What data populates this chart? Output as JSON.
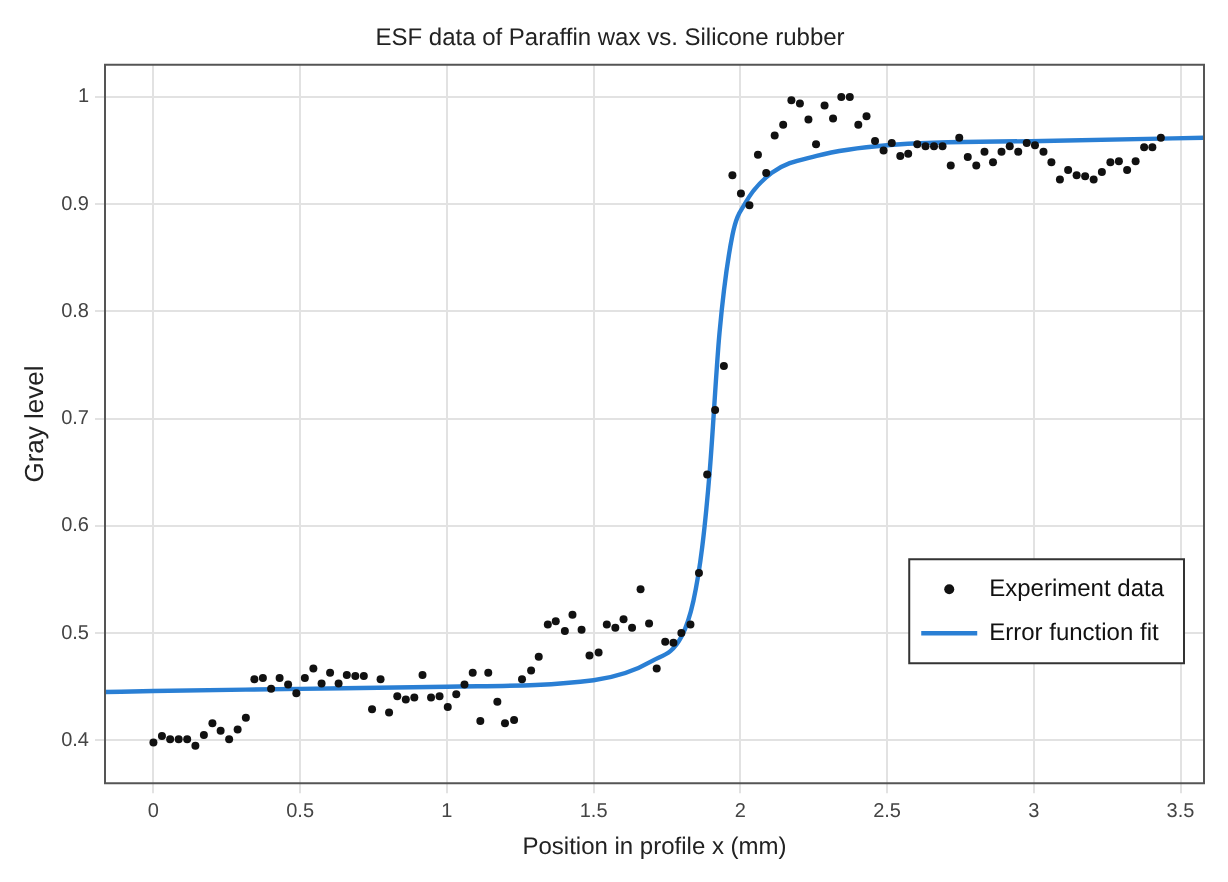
{
  "chart_data": {
    "type": "scatter",
    "title": "ESF data of Paraffin wax vs. Silicone rubber",
    "xlabel": "Position in profile x (mm)",
    "ylabel": "Gray level",
    "xlim": [
      -0.165,
      3.58
    ],
    "xticks": [
      0,
      0.5,
      1,
      1.5,
      2,
      2.5,
      3,
      3.5
    ],
    "ylim": [
      0.36,
      1.03
    ],
    "yticks": [
      0.4,
      0.5,
      0.6,
      0.7,
      0.8,
      0.9,
      1
    ],
    "grid": true,
    "legend": "bottom right",
    "series": [
      {
        "name": "Experiment data",
        "marker": "circle",
        "color": "#111111",
        "x": [
          0,
          0.029,
          0.057,
          0.086,
          0.115,
          0.143,
          0.172,
          0.201,
          0.229,
          0.258,
          0.287,
          0.315,
          0.344,
          0.373,
          0.401,
          0.43,
          0.459,
          0.487,
          0.516,
          0.545,
          0.573,
          0.602,
          0.631,
          0.659,
          0.688,
          0.717,
          0.745,
          0.774,
          0.803,
          0.831,
          0.86,
          0.889,
          0.917,
          0.946,
          0.975,
          1.003,
          1.032,
          1.06,
          1.088,
          1.114,
          1.141,
          1.172,
          1.198,
          1.229,
          1.256,
          1.287,
          1.313,
          1.344,
          1.371,
          1.402,
          1.428,
          1.459,
          1.486,
          1.517,
          1.545,
          1.574,
          1.602,
          1.631,
          1.66,
          1.689,
          1.715,
          1.744,
          1.772,
          1.799,
          1.83,
          1.859,
          1.887,
          1.914,
          1.944,
          1.973,
          2.002,
          2.031,
          2.06,
          2.088,
          2.117,
          2.146,
          2.174,
          2.203,
          2.232,
          2.258,
          2.287,
          2.316,
          2.344,
          2.373,
          2.402,
          2.43,
          2.459,
          2.488,
          2.516,
          2.545,
          2.572,
          2.603,
          2.631,
          2.66,
          2.689,
          2.717,
          2.746,
          2.775,
          2.804,
          2.832,
          2.861,
          2.89,
          2.918,
          2.947,
          2.976,
          3.004,
          3.033,
          3.06,
          3.089,
          3.117,
          3.146,
          3.175,
          3.204,
          3.232,
          3.261,
          3.29,
          3.318,
          3.347,
          3.376,
          3.404,
          3.433
        ],
        "values": [
          0.398,
          0.404,
          0.401,
          0.401,
          0.401,
          0.395,
          0.405,
          0.416,
          0.409,
          0.401,
          0.41,
          0.421,
          0.457,
          0.458,
          0.448,
          0.458,
          0.452,
          0.444,
          0.458,
          0.467,
          0.453,
          0.463,
          0.453,
          0.461,
          0.46,
          0.46,
          0.429,
          0.457,
          0.426,
          0.441,
          0.438,
          0.44,
          0.461,
          0.44,
          0.441,
          0.431,
          0.443,
          0.452,
          0.463,
          0.418,
          0.463,
          0.436,
          0.416,
          0.419,
          0.457,
          0.465,
          0.478,
          0.508,
          0.511,
          0.502,
          0.517,
          0.503,
          0.479,
          0.482,
          0.508,
          0.505,
          0.513,
          0.505,
          0.541,
          0.509,
          0.467,
          0.492,
          0.491,
          0.5,
          0.508,
          0.556,
          0.648,
          0.708,
          0.749,
          0.927,
          0.91,
          0.899,
          0.946,
          0.929,
          0.964,
          0.974,
          0.997,
          0.994,
          0.979,
          0.956,
          0.992,
          0.98,
          1,
          1,
          0.974,
          0.982,
          0.959,
          0.95,
          0.957,
          0.945,
          0.947,
          0.956,
          0.954,
          0.954,
          0.954,
          0.936,
          0.962,
          0.944,
          0.936,
          0.949,
          0.939,
          0.949,
          0.954,
          0.949,
          0.957,
          0.955,
          0.949,
          0.939,
          0.923,
          0.932,
          0.927,
          0.926,
          0.923,
          0.93,
          0.939,
          0.94,
          0.932,
          0.94,
          0.953,
          0.953,
          0.962
        ]
      },
      {
        "name": "Error function fit",
        "type": "line",
        "marker": "none",
        "line_style": "solid",
        "color": "#2a7fd4",
        "x": [
          -0.165,
          0,
          0.5,
          1,
          1.5,
          1.7,
          1.8,
          1.84,
          1.87,
          1.896,
          1.929,
          1.973,
          2.017,
          2.106,
          2.26,
          2.5,
          3.03,
          3.58
        ],
        "values": [
          0.445,
          0.446,
          0.448,
          0.45,
          0.456,
          0.474,
          0.497,
          0.53,
          0.58,
          0.652,
          0.78,
          0.871,
          0.901,
          0.929,
          0.945,
          0.955,
          0.959,
          0.962
        ]
      }
    ]
  }
}
